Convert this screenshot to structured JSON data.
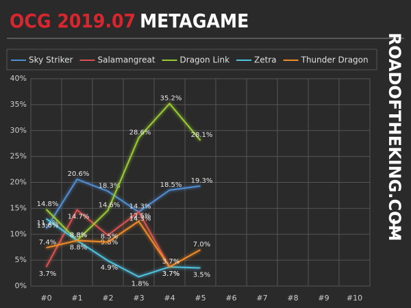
{
  "header": {
    "title_red": "OCG 2019.07",
    "title_white": "METAGAME",
    "watermark": "ROADOFTHEKING.COM"
  },
  "chart_data": {
    "type": "line",
    "categories": [
      "#0",
      "#1",
      "#2",
      "#3",
      "#4",
      "#5",
      "#6",
      "#7",
      "#8",
      "#9",
      "#10"
    ],
    "series": [
      {
        "name": "Sky Striker",
        "color": "#4f8fd6",
        "values": [
          11.1,
          20.6,
          18.3,
          14.3,
          18.5,
          19.3,
          null,
          null,
          null,
          null,
          null
        ],
        "value_labels": [
          "11.1%",
          "20.6%",
          "18.3%",
          "14.3%",
          "18.5%",
          "19.3%",
          null,
          null,
          null,
          null,
          null
        ]
      },
      {
        "name": "Salamangreat",
        "color": "#d9534f",
        "values": [
          3.7,
          14.7,
          9.8,
          14.3,
          3.7,
          null,
          null,
          null,
          null,
          null,
          null
        ],
        "value_labels": [
          "3.7%",
          "14.7%",
          "9.8%",
          "14.3%",
          "3.7%",
          null,
          null,
          null,
          null,
          null,
          null
        ]
      },
      {
        "name": "Dragon Link",
        "color": "#9acd32",
        "values": [
          14.8,
          8.8,
          14.6,
          28.6,
          35.2,
          28.1,
          null,
          null,
          null,
          null,
          null
        ],
        "value_labels": [
          "14.8%",
          "8.8%",
          "14.6%",
          "28.6%",
          "35.2%",
          "28.1%",
          null,
          null,
          null,
          null,
          null
        ]
      },
      {
        "name": "Zetra",
        "color": "#4fc3e0",
        "values": [
          13.0,
          8.8,
          4.9,
          1.8,
          3.7,
          3.5,
          null,
          null,
          null,
          null,
          null
        ],
        "value_labels": [
          "13.0%",
          "8.8%",
          "4.9%",
          "1.8%",
          "3.7%",
          "3.5%",
          null,
          null,
          null,
          null,
          null
        ]
      },
      {
        "name": "Thunder Dragon",
        "color": "#f28c28",
        "values": [
          7.4,
          8.8,
          8.5,
          12.5,
          3.7,
          7.0,
          null,
          null,
          null,
          null,
          null
        ],
        "value_labels": [
          "7.4%",
          "8.8%",
          "8.5%",
          "12.5%",
          "3.7%",
          "7.0%",
          null,
          null,
          null,
          null,
          null
        ]
      }
    ],
    "ylim": [
      0,
      40
    ],
    "yticks": [
      {
        "value": 0,
        "label": "0%"
      },
      {
        "value": 5,
        "label": "5%"
      },
      {
        "value": 10,
        "label": "10%"
      },
      {
        "value": 15,
        "label": "15%"
      },
      {
        "value": 20,
        "label": "20%"
      },
      {
        "value": 25,
        "label": "25%"
      },
      {
        "value": 30,
        "label": "30%"
      },
      {
        "value": 35,
        "label": "35%"
      },
      {
        "value": 40,
        "label": "40%"
      }
    ],
    "grid": true,
    "legend": "top"
  }
}
